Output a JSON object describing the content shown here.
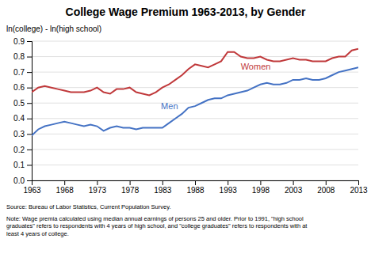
{
  "chart_data": {
    "type": "line",
    "title": "College Wage Premium 1963-2013, by Gender",
    "y_label": "ln(college) - ln(high school)",
    "annotations": [
      "Source: Bureau of Labor Statistics, Current Population Survey.",
      "Note: Wage premia calculated using median annual earnings of persons 25 and older.  Prior to 1991, \"high school\ngraduates\" refers to respondents with 4 years of high school, and \"college graduates\" refers to respondents with at\nleast 4 years of college."
    ],
    "x": [
      1963,
      1964,
      1965,
      1966,
      1967,
      1968,
      1969,
      1970,
      1971,
      1972,
      1973,
      1974,
      1975,
      1976,
      1977,
      1978,
      1979,
      1980,
      1981,
      1982,
      1983,
      1984,
      1985,
      1986,
      1987,
      1988,
      1989,
      1990,
      1991,
      1992,
      1993,
      1994,
      1995,
      1996,
      1997,
      1998,
      1999,
      2000,
      2001,
      2002,
      2003,
      2004,
      2005,
      2006,
      2007,
      2008,
      2009,
      2010,
      2011,
      2012,
      2013
    ],
    "series": [
      {
        "name": "Women",
        "color": "#c0393b",
        "values": [
          0.57,
          0.6,
          0.61,
          0.6,
          0.59,
          0.58,
          0.57,
          0.57,
          0.57,
          0.58,
          0.6,
          0.57,
          0.56,
          0.59,
          0.59,
          0.6,
          0.57,
          0.56,
          0.55,
          0.57,
          0.6,
          0.62,
          0.65,
          0.68,
          0.72,
          0.75,
          0.74,
          0.73,
          0.75,
          0.77,
          0.83,
          0.83,
          0.8,
          0.79,
          0.79,
          0.8,
          0.78,
          0.77,
          0.77,
          0.78,
          0.79,
          0.78,
          0.78,
          0.77,
          0.77,
          0.77,
          0.79,
          0.8,
          0.8,
          0.84,
          0.85
        ]
      },
      {
        "name": "Men",
        "color": "#4472c4",
        "values": [
          0.29,
          0.33,
          0.35,
          0.36,
          0.37,
          0.38,
          0.37,
          0.36,
          0.35,
          0.36,
          0.35,
          0.32,
          0.34,
          0.35,
          0.34,
          0.34,
          0.33,
          0.34,
          0.34,
          0.34,
          0.34,
          0.37,
          0.4,
          0.43,
          0.47,
          0.48,
          0.5,
          0.52,
          0.53,
          0.53,
          0.55,
          0.56,
          0.57,
          0.58,
          0.6,
          0.62,
          0.63,
          0.62,
          0.62,
          0.63,
          0.65,
          0.65,
          0.66,
          0.65,
          0.65,
          0.66,
          0.68,
          0.7,
          0.71,
          0.72,
          0.73
        ]
      }
    ],
    "xlim": [
      1963,
      2013
    ],
    "xticks": [
      1963,
      1968,
      1973,
      1978,
      1983,
      1988,
      1993,
      1998,
      2003,
      2008,
      2013
    ],
    "ylim": [
      0,
      0.9
    ],
    "yticks": [
      {
        "value": 0,
        "label": "0.0"
      },
      0.1,
      0.2,
      0.3,
      0.4,
      0.5,
      0.6,
      0.7,
      0.8,
      0.9
    ],
    "grid": true
  }
}
